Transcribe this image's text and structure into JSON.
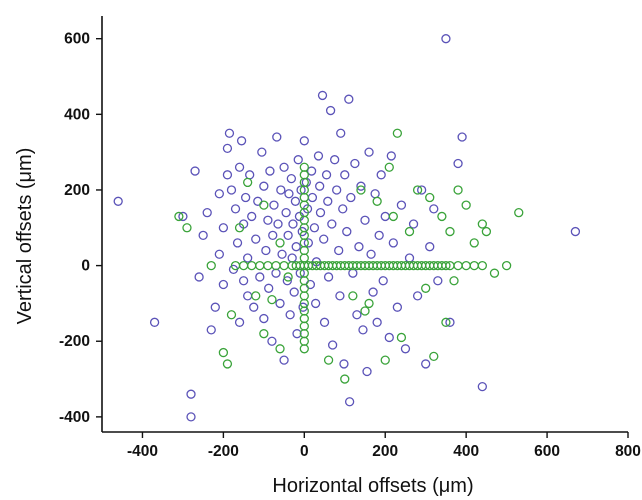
{
  "chart_data": {
    "type": "scatter",
    "xlabel": "Horizontal offsets (μm)",
    "ylabel": "Vertical offsets (μm)",
    "xlim": [
      -500,
      800
    ],
    "ylim": [
      -440,
      660
    ],
    "xticks": [
      -400,
      -200,
      0,
      200,
      400,
      600,
      800
    ],
    "yticks": [
      600,
      400,
      200,
      0,
      -200,
      -400
    ],
    "grid": false,
    "legend": "none",
    "series": [
      {
        "color": "#5b53b8",
        "points": [
          [
            -460,
            170
          ],
          [
            -370,
            -150
          ],
          [
            -300,
            130
          ],
          [
            -280,
            -340
          ],
          [
            -280,
            -400
          ],
          [
            -270,
            250
          ],
          [
            -260,
            -30
          ],
          [
            -250,
            80
          ],
          [
            -240,
            140
          ],
          [
            -230,
            -170
          ],
          [
            -220,
            -110
          ],
          [
            -210,
            30
          ],
          [
            -210,
            190
          ],
          [
            -200,
            100
          ],
          [
            -200,
            -50
          ],
          [
            -190,
            240
          ],
          [
            -190,
            310
          ],
          [
            -185,
            350
          ],
          [
            -180,
            200
          ],
          [
            -175,
            -10
          ],
          [
            -170,
            150
          ],
          [
            -165,
            60
          ],
          [
            -160,
            -150
          ],
          [
            -160,
            260
          ],
          [
            -155,
            330
          ],
          [
            -150,
            -40
          ],
          [
            -150,
            110
          ],
          [
            -145,
            180
          ],
          [
            -140,
            -80
          ],
          [
            -140,
            20
          ],
          [
            -135,
            240
          ],
          [
            -130,
            130
          ],
          [
            -125,
            -110
          ],
          [
            -120,
            70
          ],
          [
            -115,
            170
          ],
          [
            -110,
            -30
          ],
          [
            -105,
            300
          ],
          [
            -100,
            210
          ],
          [
            -100,
            -140
          ],
          [
            -95,
            40
          ],
          [
            -90,
            120
          ],
          [
            -88,
            -60
          ],
          [
            -85,
            250
          ],
          [
            -80,
            -200
          ],
          [
            -78,
            80
          ],
          [
            -75,
            160
          ],
          [
            -70,
            -20
          ],
          [
            -68,
            340
          ],
          [
            -65,
            110
          ],
          [
            -60,
            -100
          ],
          [
            -58,
            200
          ],
          [
            -55,
            30
          ],
          [
            -50,
            -250
          ],
          [
            -50,
            260
          ],
          [
            -45,
            140
          ],
          [
            -42,
            -40
          ],
          [
            -40,
            80
          ],
          [
            -38,
            190
          ],
          [
            -35,
            -130
          ],
          [
            -32,
            230
          ],
          [
            -30,
            20
          ],
          [
            -28,
            110
          ],
          [
            -25,
            -70
          ],
          [
            -22,
            170
          ],
          [
            -20,
            50
          ],
          [
            -18,
            -180
          ],
          [
            -15,
            280
          ],
          [
            -12,
            130
          ],
          [
            -10,
            -20
          ],
          [
            -8,
            200
          ],
          [
            -5,
            90
          ],
          [
            -3,
            -110
          ],
          [
            0,
            330
          ],
          [
            5,
            220
          ],
          [
            8,
            150
          ],
          [
            10,
            60
          ],
          [
            15,
            -50
          ],
          [
            18,
            250
          ],
          [
            20,
            180
          ],
          [
            25,
            100
          ],
          [
            28,
            -100
          ],
          [
            30,
            10
          ],
          [
            35,
            290
          ],
          [
            38,
            210
          ],
          [
            40,
            140
          ],
          [
            45,
            450
          ],
          [
            48,
            70
          ],
          [
            50,
            -150
          ],
          [
            55,
            240
          ],
          [
            58,
            170
          ],
          [
            60,
            -30
          ],
          [
            65,
            410
          ],
          [
            68,
            110
          ],
          [
            70,
            -210
          ],
          [
            75,
            280
          ],
          [
            80,
            200
          ],
          [
            85,
            40
          ],
          [
            88,
            -80
          ],
          [
            90,
            350
          ],
          [
            95,
            150
          ],
          [
            98,
            -260
          ],
          [
            100,
            240
          ],
          [
            105,
            90
          ],
          [
            110,
            440
          ],
          [
            112,
            -360
          ],
          [
            115,
            180
          ],
          [
            120,
            -20
          ],
          [
            125,
            270
          ],
          [
            130,
            -130
          ],
          [
            135,
            50
          ],
          [
            140,
            210
          ],
          [
            145,
            -170
          ],
          [
            150,
            120
          ],
          [
            155,
            -280
          ],
          [
            160,
            300
          ],
          [
            165,
            30
          ],
          [
            170,
            -70
          ],
          [
            175,
            190
          ],
          [
            180,
            -150
          ],
          [
            185,
            80
          ],
          [
            190,
            240
          ],
          [
            195,
            -40
          ],
          [
            200,
            130
          ],
          [
            210,
            -190
          ],
          [
            215,
            290
          ],
          [
            220,
            60
          ],
          [
            230,
            -110
          ],
          [
            240,
            160
          ],
          [
            250,
            -220
          ],
          [
            260,
            20
          ],
          [
            270,
            110
          ],
          [
            280,
            -80
          ],
          [
            290,
            200
          ],
          [
            300,
            -260
          ],
          [
            310,
            50
          ],
          [
            320,
            150
          ],
          [
            330,
            -40
          ],
          [
            350,
            600
          ],
          [
            360,
            -150
          ],
          [
            380,
            270
          ],
          [
            390,
            340
          ],
          [
            440,
            -320
          ],
          [
            670,
            90
          ]
        ]
      },
      {
        "color": "#3aa33a",
        "points": [
          [
            -310,
            130
          ],
          [
            -290,
            100
          ],
          [
            -230,
            0
          ],
          [
            -200,
            -230
          ],
          [
            -190,
            -260
          ],
          [
            -180,
            -130
          ],
          [
            -170,
            0
          ],
          [
            -160,
            100
          ],
          [
            -150,
            0
          ],
          [
            -140,
            220
          ],
          [
            -130,
            0
          ],
          [
            -120,
            -80
          ],
          [
            -110,
            0
          ],
          [
            -100,
            160
          ],
          [
            -90,
            0
          ],
          [
            -80,
            -90
          ],
          [
            -70,
            0
          ],
          [
            -60,
            60
          ],
          [
            -50,
            0
          ],
          [
            -40,
            -30
          ],
          [
            -30,
            0
          ],
          [
            -20,
            0
          ],
          [
            -10,
            0
          ],
          [
            0,
            260
          ],
          [
            0,
            240
          ],
          [
            0,
            220
          ],
          [
            0,
            200
          ],
          [
            0,
            180
          ],
          [
            0,
            160
          ],
          [
            0,
            140
          ],
          [
            0,
            120
          ],
          [
            0,
            100
          ],
          [
            0,
            80
          ],
          [
            0,
            60
          ],
          [
            0,
            40
          ],
          [
            0,
            20
          ],
          [
            0,
            0
          ],
          [
            0,
            -20
          ],
          [
            0,
            -40
          ],
          [
            0,
            -60
          ],
          [
            0,
            -80
          ],
          [
            0,
            -100
          ],
          [
            0,
            -120
          ],
          [
            0,
            -140
          ],
          [
            0,
            -160
          ],
          [
            0,
            -180
          ],
          [
            0,
            -200
          ],
          [
            0,
            -220
          ],
          [
            10,
            0
          ],
          [
            20,
            0
          ],
          [
            30,
            0
          ],
          [
            40,
            0
          ],
          [
            50,
            0
          ],
          [
            60,
            0
          ],
          [
            70,
            0
          ],
          [
            80,
            0
          ],
          [
            90,
            0
          ],
          [
            100,
            0
          ],
          [
            110,
            0
          ],
          [
            120,
            0
          ],
          [
            130,
            0
          ],
          [
            140,
            0
          ],
          [
            150,
            0
          ],
          [
            160,
            0
          ],
          [
            170,
            0
          ],
          [
            180,
            0
          ],
          [
            190,
            0
          ],
          [
            200,
            0
          ],
          [
            210,
            0
          ],
          [
            220,
            0
          ],
          [
            230,
            0
          ],
          [
            240,
            0
          ],
          [
            250,
            0
          ],
          [
            260,
            0
          ],
          [
            270,
            0
          ],
          [
            280,
            0
          ],
          [
            290,
            0
          ],
          [
            300,
            0
          ],
          [
            310,
            0
          ],
          [
            320,
            0
          ],
          [
            330,
            0
          ],
          [
            340,
            0
          ],
          [
            350,
            0
          ],
          [
            360,
            0
          ],
          [
            380,
            0
          ],
          [
            400,
            0
          ],
          [
            420,
            0
          ],
          [
            440,
            0
          ],
          [
            120,
            -80
          ],
          [
            140,
            200
          ],
          [
            150,
            -120
          ],
          [
            180,
            170
          ],
          [
            200,
            -250
          ],
          [
            210,
            260
          ],
          [
            220,
            130
          ],
          [
            230,
            350
          ],
          [
            240,
            -190
          ],
          [
            260,
            90
          ],
          [
            280,
            200
          ],
          [
            300,
            -60
          ],
          [
            310,
            180
          ],
          [
            320,
            -240
          ],
          [
            340,
            130
          ],
          [
            350,
            -150
          ],
          [
            360,
            90
          ],
          [
            370,
            -40
          ],
          [
            380,
            200
          ],
          [
            400,
            160
          ],
          [
            420,
            60
          ],
          [
            440,
            110
          ],
          [
            450,
            90
          ],
          [
            470,
            -20
          ],
          [
            500,
            0
          ],
          [
            530,
            140
          ],
          [
            -100,
            -180
          ],
          [
            -60,
            -220
          ],
          [
            60,
            -250
          ],
          [
            100,
            -300
          ],
          [
            160,
            -100
          ]
        ]
      }
    ]
  }
}
